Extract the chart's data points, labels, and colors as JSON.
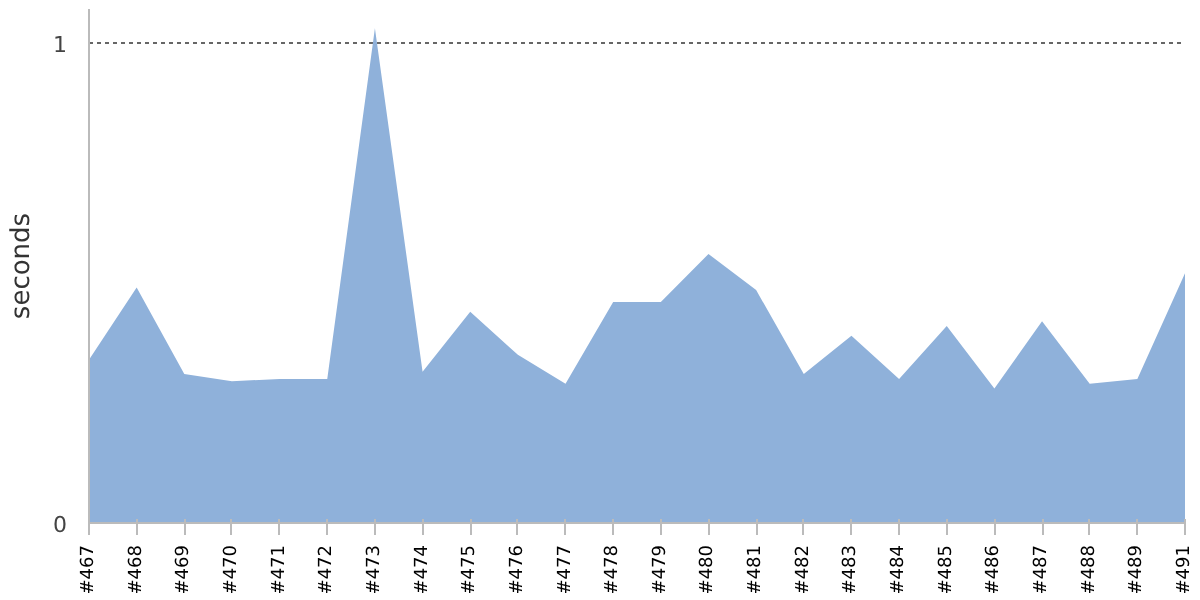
{
  "chart_data": {
    "type": "area",
    "ylabel": "seconds",
    "categories": [
      "#467",
      "#468",
      "#469",
      "#470",
      "#471",
      "#472",
      "#473",
      "#474",
      "#475",
      "#476",
      "#477",
      "#478",
      "#479",
      "#480",
      "#481",
      "#482",
      "#483",
      "#484",
      "#485",
      "#486",
      "#487",
      "#488",
      "#489",
      "#491"
    ],
    "series": [
      {
        "color": "#8fb1da",
        "values": [
          0.34,
          0.49,
          0.31,
          0.295,
          0.3,
          0.3,
          1.03,
          0.315,
          0.44,
          0.35,
          0.29,
          0.46,
          0.46,
          0.56,
          0.485,
          0.31,
          0.39,
          0.3,
          0.41,
          0.28,
          0.42,
          0.29,
          0.3,
          0.52
        ]
      }
    ],
    "ylim": [
      0,
      1.07
    ],
    "yticks": [
      0,
      1
    ],
    "grid": "y"
  }
}
